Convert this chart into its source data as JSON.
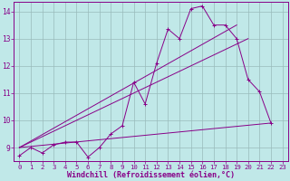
{
  "title": "",
  "xlabel": "Windchill (Refroidissement éolien,°C)",
  "xlim": [
    -0.5,
    23.5
  ],
  "ylim": [
    8.5,
    14.35
  ],
  "bg_color": "#c0e8e8",
  "line_color": "#880088",
  "grid_color": "#99bbbb",
  "spine_color": "#880088",
  "series_zigzag": [
    [
      0,
      8.7
    ],
    [
      1,
      9.0
    ],
    [
      2,
      8.8
    ],
    [
      3,
      9.1
    ],
    [
      4,
      9.2
    ],
    [
      5,
      9.2
    ],
    [
      6,
      8.65
    ],
    [
      7,
      9.0
    ],
    [
      8,
      9.5
    ],
    [
      9,
      9.8
    ],
    [
      10,
      11.4
    ],
    [
      11,
      10.6
    ],
    [
      12,
      12.1
    ],
    [
      13,
      13.35
    ],
    [
      14,
      13.0
    ],
    [
      15,
      14.1
    ],
    [
      16,
      14.2
    ],
    [
      17,
      13.5
    ],
    [
      18,
      13.5
    ],
    [
      19,
      13.0
    ],
    [
      20,
      11.5
    ],
    [
      21,
      11.05
    ],
    [
      22,
      9.9
    ]
  ],
  "line1": [
    [
      0,
      9.0
    ],
    [
      22,
      9.9
    ]
  ],
  "line2": [
    [
      0,
      9.0
    ],
    [
      20,
      13.0
    ]
  ],
  "line3": [
    [
      0,
      9.0
    ],
    [
      19,
      13.5
    ]
  ],
  "xticks": [
    0,
    1,
    2,
    3,
    4,
    5,
    6,
    7,
    8,
    9,
    10,
    11,
    12,
    13,
    14,
    15,
    16,
    17,
    18,
    19,
    20,
    21,
    22,
    23
  ],
  "yticks": [
    9,
    10,
    11,
    12,
    13,
    14
  ],
  "xlabel_fontsize": 6.0,
  "tick_fontsize": 5.2,
  "marker_size": 2.5
}
